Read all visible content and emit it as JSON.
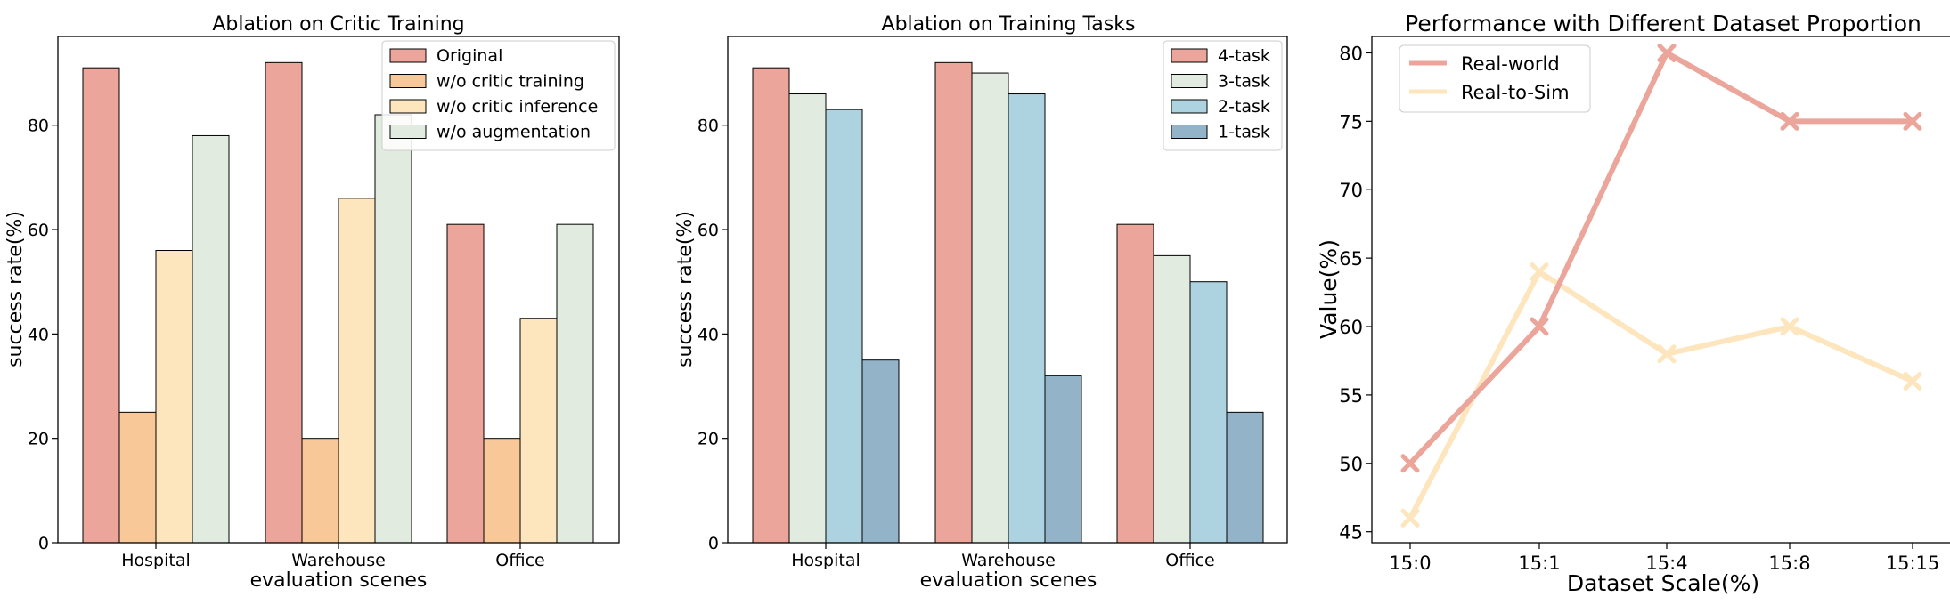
{
  "chart_data": [
    {
      "type": "bar",
      "title": "Ablation on Critic Training",
      "xlabel": "evaluation scenes",
      "ylabel": "success rate(%)",
      "categories": [
        "Hospital",
        "Warehouse",
        "Office"
      ],
      "ylim": [
        0,
        97
      ],
      "yticks": [
        "0",
        "20",
        "40",
        "60",
        "80"
      ],
      "legend_position": "top-right",
      "series": [
        {
          "name": "Original",
          "color": "#EBA59A",
          "values": [
            91,
            92,
            61
          ]
        },
        {
          "name": "w/o critic training",
          "color": "#F8C898",
          "values": [
            25,
            20,
            20
          ]
        },
        {
          "name": "w/o critic inference",
          "color": "#FDE6BE",
          "values": [
            56,
            66,
            43
          ]
        },
        {
          "name": "w/o augmentation",
          "color": "#E1EBDF",
          "values": [
            78,
            82,
            61
          ]
        }
      ]
    },
    {
      "type": "bar",
      "title": "Ablation on Training Tasks",
      "xlabel": "evaluation scenes",
      "ylabel": "success rate(%)",
      "categories": [
        "Hospital",
        "Warehouse",
        "Office"
      ],
      "ylim": [
        0,
        97
      ],
      "yticks": [
        "0",
        "20",
        "40",
        "60",
        "80"
      ],
      "legend_position": "top-right",
      "series": [
        {
          "name": "4-task",
          "color": "#EBA59A",
          "values": [
            91,
            92,
            61
          ]
        },
        {
          "name": "3-task",
          "color": "#E1EBDF",
          "values": [
            86,
            90,
            55
          ]
        },
        {
          "name": "2-task",
          "color": "#ADD3E0",
          "values": [
            83,
            86,
            50
          ]
        },
        {
          "name": "1-task",
          "color": "#93B4C8",
          "values": [
            35,
            32,
            25
          ]
        }
      ]
    },
    {
      "type": "line",
      "title": "Performance with Different Dataset Proportion",
      "xlabel": "Dataset Scale(%)",
      "ylabel": "Value(%)",
      "categories": [
        "15:0",
        "15:1",
        "15:4",
        "15:8",
        "15:15"
      ],
      "ylim": [
        44.2,
        81.2
      ],
      "yticks": [
        "45",
        "50",
        "55",
        "60",
        "65",
        "70",
        "75",
        "80"
      ],
      "legend_position": "top-left",
      "series": [
        {
          "name": "Real-world",
          "color": "#EBA59A",
          "values": [
            50,
            60,
            80,
            75,
            75
          ]
        },
        {
          "name": "Real-to-Sim",
          "color": "#FDE6BE",
          "values": [
            46,
            64,
            58,
            60,
            56
          ]
        }
      ]
    }
  ]
}
